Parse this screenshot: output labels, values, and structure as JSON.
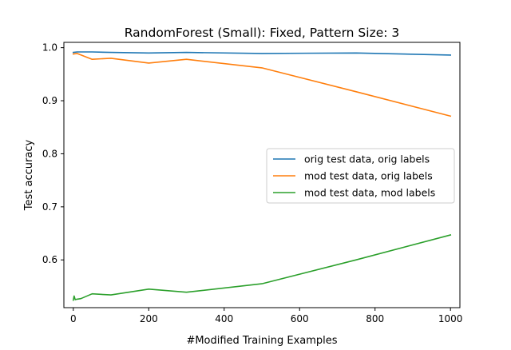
{
  "chart_data": {
    "type": "line",
    "title": "RandomForest (Small): Fixed, Pattern Size: 3",
    "xlabel": "#Modified Training Examples",
    "ylabel": "Test accuracy",
    "xlim": [
      -25,
      1025
    ],
    "ylim": [
      0.51,
      1.01
    ],
    "xticks": [
      0,
      200,
      400,
      600,
      800,
      1000
    ],
    "xtick_labels": [
      "0",
      "200",
      "400",
      "600",
      "800",
      "1000"
    ],
    "yticks": [
      0.6,
      0.7,
      0.8,
      0.9,
      1.0
    ],
    "ytick_labels": [
      "0.6",
      "0.7",
      "0.8",
      "0.9",
      "1.0"
    ],
    "grid": false,
    "legend_position": "center-right",
    "series": [
      {
        "name": "orig test data, orig labels",
        "color": "#1f77b4",
        "x": [
          0,
          10,
          50,
          100,
          200,
          300,
          500,
          750,
          1000
        ],
        "y": [
          0.991,
          0.992,
          0.992,
          0.991,
          0.99,
          0.991,
          0.989,
          0.99,
          0.986
        ]
      },
      {
        "name": "mod test data, orig labels",
        "color": "#ff7f0e",
        "x": [
          0,
          10,
          50,
          100,
          200,
          300,
          500,
          750,
          1000
        ],
        "y": [
          0.988,
          0.989,
          0.978,
          0.98,
          0.971,
          0.978,
          0.962,
          0.917,
          0.871
        ]
      },
      {
        "name": "mod test data, mod labels",
        "color": "#2ca02c",
        "x": [
          0,
          2,
          5,
          10,
          20,
          50,
          100,
          200,
          300,
          500,
          750,
          1000
        ],
        "y": [
          0.524,
          0.532,
          0.525,
          0.526,
          0.527,
          0.536,
          0.534,
          0.545,
          0.539,
          0.555,
          0.6,
          0.647
        ]
      }
    ]
  }
}
